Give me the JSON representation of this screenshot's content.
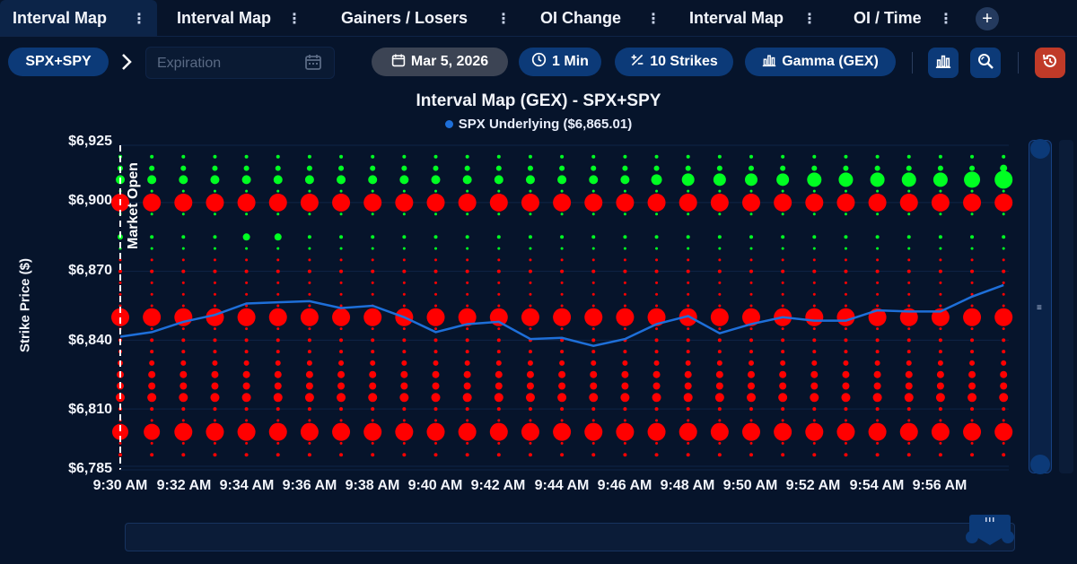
{
  "tabs": [
    {
      "label": "Interval Map",
      "active": true
    },
    {
      "label": "Interval Map",
      "active": false
    },
    {
      "label": "Gainers / Losers",
      "active": false
    },
    {
      "label": "OI Change",
      "active": false
    },
    {
      "label": "Interval Map",
      "active": false
    },
    {
      "label": "OI / Time",
      "active": false
    }
  ],
  "toolbar": {
    "symbol": "SPX+SPY",
    "expiration_placeholder": "Expiration",
    "date": "Mar 5, 2026",
    "interval": "1 Min",
    "strikes": "10 Strikes",
    "metric": "Gamma (GEX)"
  },
  "icons": {
    "tab_menu": "vertical-dots-icon",
    "add_tab": "plus-icon",
    "breadcrumb": "chevron-right-icon",
    "calendar": "calendar-icon",
    "clock": "clock-icon",
    "strikes": "plus-minus-icon",
    "chart": "bar-chart-icon",
    "zoom": "zoom-icon",
    "reset": "reset-icon"
  },
  "colors": {
    "positive": "#00ff22",
    "negative": "#ff0000",
    "underlying": "#1e6fd9",
    "accent": "#0c3a78",
    "reset": "#c03a28"
  },
  "chart_data": {
    "type": "scatter",
    "title": "Interval Map (GEX) - SPX+SPY",
    "legend": "SPX Underlying ($6,865.01)",
    "ylabel": "Strike Price ($)",
    "ylim": [
      6785,
      6925
    ],
    "ytick_labels": [
      "$6,925",
      "$6,900",
      "$6,870",
      "$6,840",
      "$6,810",
      "$6,785"
    ],
    "ytick_values": [
      6925,
      6900,
      6870,
      6840,
      6810,
      6785
    ],
    "x": [
      "9:30 AM",
      "9:31 AM",
      "9:32 AM",
      "9:33 AM",
      "9:34 AM",
      "9:35 AM",
      "9:36 AM",
      "9:37 AM",
      "9:38 AM",
      "9:39 AM",
      "9:40 AM",
      "9:41 AM",
      "9:42 AM",
      "9:43 AM",
      "9:44 AM",
      "9:45 AM",
      "9:46 AM",
      "9:47 AM",
      "9:48 AM",
      "9:49 AM",
      "9:50 AM",
      "9:51 AM",
      "9:52 AM",
      "9:53 AM",
      "9:54 AM",
      "9:55 AM",
      "9:56 AM",
      "9:57 AM",
      "9:58 AM"
    ],
    "xtick_labels": [
      "9:30 AM",
      "9:32 AM",
      "9:34 AM",
      "9:36 AM",
      "9:38 AM",
      "9:40 AM",
      "9:42 AM",
      "9:44 AM",
      "9:46 AM",
      "9:48 AM",
      "9:50 AM",
      "9:52 AM",
      "9:54 AM",
      "9:56 AM"
    ],
    "annotation": "Market Open",
    "underlying": [
      6841.5,
      6843.5,
      6848,
      6851,
      6856,
      6856.5,
      6857,
      6854,
      6855,
      6850,
      6843.5,
      6847,
      6848,
      6840.5,
      6841,
      6837.5,
      6840.5,
      6847,
      6850.5,
      6843,
      6847,
      6850,
      6848.5,
      6848.5,
      6853,
      6852.5,
      6852.5,
      6859,
      6864
    ],
    "series": [
      {
        "strike": 6920,
        "sign": "positive",
        "sizes": [
          2,
          2,
          2,
          2,
          2,
          2,
          2,
          2,
          2,
          2,
          2,
          2,
          2,
          2,
          2,
          2,
          2,
          2,
          2,
          2,
          2,
          2,
          2,
          2,
          2,
          2,
          2,
          2,
          2
        ]
      },
      {
        "strike": 6915,
        "sign": "positive",
        "sizes": [
          3,
          3,
          3,
          3,
          3,
          3,
          3,
          3,
          3,
          3,
          3,
          3,
          3,
          3,
          3,
          3,
          3,
          3,
          3,
          3,
          3,
          3,
          3,
          3,
          3,
          3,
          3,
          3,
          4
        ]
      },
      {
        "strike": 6910,
        "sign": "positive",
        "sizes": [
          5,
          5,
          5,
          5,
          5,
          5,
          5,
          5,
          5,
          5,
          5,
          5,
          5,
          5,
          5,
          5,
          5,
          6,
          7,
          7,
          7,
          7,
          8,
          8,
          8,
          8,
          8,
          9,
          10
        ]
      },
      {
        "strike": 6905,
        "sign": "positive",
        "sizes": [
          1,
          1,
          1,
          1,
          1,
          1,
          1,
          1,
          1,
          1,
          1,
          1,
          1,
          1,
          1,
          1,
          1,
          1,
          1,
          1,
          1,
          1,
          1,
          1,
          1,
          1,
          1,
          1,
          1
        ]
      },
      {
        "strike": 6900,
        "sign": "negative",
        "sizes": [
          10,
          10,
          10,
          10,
          10,
          10,
          10,
          10,
          10,
          10,
          10,
          10,
          10,
          10,
          10,
          10,
          10,
          10,
          10,
          10,
          10,
          10,
          10,
          10,
          10,
          10,
          10,
          10,
          10
        ]
      },
      {
        "strike": 6895,
        "sign": "positive",
        "sizes": [
          1,
          1,
          1,
          1,
          1,
          1,
          1,
          1,
          1,
          1,
          1,
          1,
          1,
          1,
          1,
          1,
          1,
          1,
          1,
          1,
          1,
          1,
          1,
          1,
          1,
          1,
          1,
          1,
          1
        ]
      },
      {
        "strike": 6885,
        "sign": "positive",
        "sizes": [
          3,
          2,
          2,
          2,
          4,
          4,
          2,
          2,
          2,
          2,
          2,
          2,
          2,
          2,
          2,
          2,
          2,
          2,
          2,
          2,
          2,
          2,
          2,
          2,
          2,
          2,
          2,
          2,
          2
        ]
      },
      {
        "strike": 6880,
        "sign": "positive",
        "sizes": [
          1,
          1,
          1,
          1,
          1,
          1,
          1,
          1,
          1,
          1,
          1,
          1,
          1,
          1,
          1,
          1,
          1,
          1,
          1,
          1,
          1,
          1,
          1,
          1,
          1,
          1,
          1,
          1,
          1
        ]
      },
      {
        "strike": 6875,
        "sign": "negative",
        "sizes": [
          1,
          1,
          1,
          1,
          1,
          1,
          1,
          1,
          1,
          1,
          1,
          1,
          1,
          1,
          1,
          1,
          1,
          1,
          1,
          1,
          1,
          1,
          1,
          1,
          1,
          1,
          1,
          1,
          1
        ]
      },
      {
        "strike": 6870,
        "sign": "negative",
        "sizes": [
          2,
          2,
          2,
          2,
          2,
          2,
          2,
          2,
          2,
          2,
          2,
          2,
          2,
          2,
          2,
          2,
          2,
          2,
          2,
          2,
          2,
          2,
          2,
          2,
          2,
          2,
          2,
          2,
          2
        ]
      },
      {
        "strike": 6865,
        "sign": "negative",
        "sizes": [
          1,
          1,
          1,
          1,
          1,
          1,
          1,
          1,
          1,
          1,
          1,
          1,
          1,
          1,
          1,
          1,
          1,
          1,
          1,
          1,
          1,
          1,
          1,
          1,
          1,
          1,
          1,
          1,
          1
        ]
      },
      {
        "strike": 6860,
        "sign": "negative",
        "sizes": [
          1,
          1,
          1,
          1,
          1,
          1,
          1,
          1,
          1,
          1,
          1,
          1,
          1,
          1,
          1,
          1,
          1,
          1,
          1,
          1,
          1,
          1,
          1,
          1,
          1,
          1,
          1,
          1,
          1
        ]
      },
      {
        "strike": 6855,
        "sign": "negative",
        "sizes": [
          1,
          1,
          1,
          1,
          1,
          1,
          1,
          1,
          1,
          1,
          1,
          1,
          1,
          1,
          1,
          1,
          1,
          1,
          1,
          1,
          1,
          1,
          1,
          1,
          1,
          1,
          1,
          1,
          1
        ]
      },
      {
        "strike": 6850,
        "sign": "negative",
        "sizes": [
          10,
          10,
          10,
          10,
          10,
          10,
          10,
          10,
          10,
          10,
          10,
          10,
          10,
          10,
          10,
          10,
          10,
          10,
          10,
          10,
          10,
          10,
          10,
          10,
          10,
          10,
          10,
          10,
          10
        ]
      },
      {
        "strike": 6845,
        "sign": "negative",
        "sizes": [
          1,
          1,
          1,
          1,
          1,
          1,
          1,
          1,
          1,
          1,
          1,
          1,
          1,
          1,
          1,
          1,
          1,
          1,
          1,
          1,
          1,
          1,
          1,
          1,
          1,
          1,
          1,
          1,
          1
        ]
      },
      {
        "strike": 6840,
        "sign": "negative",
        "sizes": [
          2,
          2,
          2,
          2,
          2,
          2,
          2,
          2,
          2,
          2,
          2,
          2,
          2,
          2,
          2,
          2,
          2,
          2,
          2,
          2,
          2,
          2,
          2,
          2,
          2,
          2,
          2,
          2,
          2
        ]
      },
      {
        "strike": 6835,
        "sign": "negative",
        "sizes": [
          2,
          2,
          2,
          2,
          2,
          2,
          2,
          2,
          2,
          2,
          2,
          2,
          2,
          2,
          2,
          2,
          2,
          2,
          2,
          2,
          2,
          2,
          2,
          2,
          2,
          2,
          2,
          2,
          2
        ]
      },
      {
        "strike": 6830,
        "sign": "negative",
        "sizes": [
          3,
          3,
          3,
          3,
          3,
          3,
          3,
          3,
          3,
          3,
          3,
          3,
          3,
          3,
          3,
          3,
          3,
          3,
          3,
          3,
          3,
          3,
          3,
          3,
          3,
          3,
          3,
          3,
          3
        ]
      },
      {
        "strike": 6825,
        "sign": "negative",
        "sizes": [
          4,
          4,
          4,
          4,
          4,
          4,
          4,
          4,
          4,
          4,
          4,
          4,
          4,
          4,
          4,
          4,
          4,
          4,
          4,
          4,
          4,
          4,
          4,
          4,
          4,
          4,
          4,
          4,
          4
        ]
      },
      {
        "strike": 6820,
        "sign": "negative",
        "sizes": [
          4,
          4,
          4,
          4,
          4,
          4,
          4,
          4,
          4,
          4,
          4,
          4,
          4,
          4,
          4,
          4,
          4,
          4,
          4,
          4,
          4,
          4,
          4,
          4,
          4,
          4,
          4,
          4,
          4
        ]
      },
      {
        "strike": 6815,
        "sign": "negative",
        "sizes": [
          5,
          5,
          5,
          5,
          5,
          5,
          5,
          5,
          5,
          5,
          5,
          5,
          5,
          5,
          5,
          5,
          5,
          5,
          5,
          5,
          5,
          5,
          5,
          5,
          5,
          5,
          5,
          5,
          5
        ]
      },
      {
        "strike": 6810,
        "sign": "negative",
        "sizes": [
          2,
          2,
          2,
          2,
          2,
          2,
          2,
          2,
          2,
          2,
          2,
          2,
          2,
          2,
          2,
          2,
          2,
          2,
          2,
          2,
          2,
          2,
          2,
          2,
          2,
          2,
          2,
          2,
          2
        ]
      },
      {
        "strike": 6805,
        "sign": "negative",
        "sizes": [
          1,
          1,
          1,
          1,
          1,
          1,
          1,
          1,
          1,
          1,
          1,
          1,
          1,
          1,
          1,
          1,
          1,
          1,
          1,
          1,
          1,
          1,
          1,
          1,
          1,
          1,
          1,
          1,
          1
        ]
      },
      {
        "strike": 6800,
        "sign": "negative",
        "sizes": [
          9,
          9,
          10,
          10,
          10,
          10,
          10,
          10,
          10,
          10,
          10,
          10,
          10,
          10,
          10,
          10,
          10,
          10,
          10,
          10,
          10,
          10,
          10,
          10,
          10,
          10,
          10,
          10,
          10
        ]
      },
      {
        "strike": 6795,
        "sign": "negative",
        "sizes": [
          1,
          1,
          1,
          1,
          1,
          1,
          1,
          1,
          1,
          1,
          1,
          1,
          1,
          1,
          1,
          1,
          1,
          1,
          1,
          1,
          1,
          1,
          1,
          1,
          1,
          1,
          1,
          1,
          1
        ]
      },
      {
        "strike": 6790,
        "sign": "negative",
        "sizes": [
          2,
          2,
          2,
          2,
          2,
          2,
          2,
          2,
          2,
          2,
          2,
          2,
          2,
          2,
          2,
          2,
          2,
          2,
          2,
          2,
          2,
          2,
          2,
          2,
          2,
          2,
          2,
          2,
          2
        ]
      }
    ]
  }
}
